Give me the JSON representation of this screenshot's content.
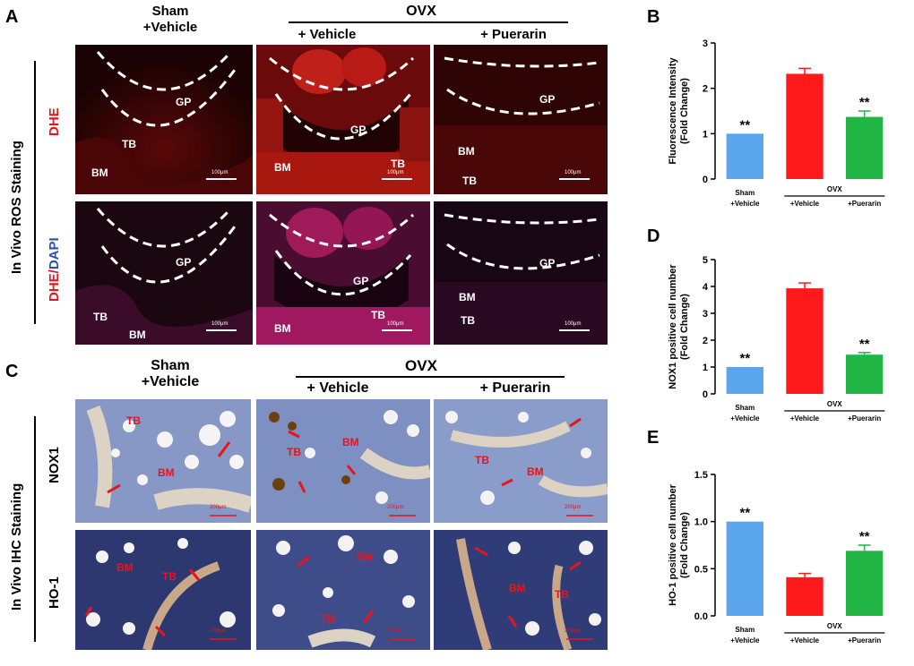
{
  "panel_letters": {
    "A": "A",
    "B": "B",
    "C": "C",
    "D": "D",
    "E": "E"
  },
  "headers_top": {
    "sham_line1": "Sham",
    "sham_line2": "+Vehicle",
    "ovx": "OVX",
    "vehicle": "+ Vehicle",
    "puerarin": "+ Puerarin"
  },
  "headers_bottom": {
    "sham_line1": "Sham",
    "sham_line2": "+Vehicle",
    "ovx": "OVX",
    "vehicle": "+ Vehicle",
    "puerarin": "+ Puerarin"
  },
  "section_labels": {
    "ros": "In Vivo ROS Staining",
    "ihc": "In Vivo IHC Staining"
  },
  "row_labels": {
    "dhe": "DHE",
    "dhe_dapi_red": "DHE/",
    "dhe_dapi_blue": "DAPI",
    "nox1": "NOX1",
    "ho1": "HO-1"
  },
  "tissue_labels": {
    "gp": "GP",
    "tb": "TB",
    "bm": "BM"
  },
  "scale_labels": {
    "ros": "100μm",
    "ihc": "200μm"
  },
  "colors": {
    "sham": "#5aa5ec",
    "vehicle": "#fe1a1a",
    "puerarin": "#20b545",
    "dhe_red": "#e8141b",
    "dapi_blue": "#2c4fa8"
  },
  "chart_data": [
    {
      "type": "bar",
      "panel": "B",
      "categories": [
        "Sham +Vehicle",
        "+Vehicle",
        "+Puerarin"
      ],
      "cat_lines": [
        [
          "Sham",
          "+Vehicle"
        ],
        [
          "+Vehicle"
        ],
        [
          "+Puerarin"
        ]
      ],
      "values": [
        1.0,
        2.32,
        1.37
      ],
      "errors": [
        0,
        0.12,
        0.13
      ],
      "significance": [
        "**",
        "",
        "**"
      ],
      "ylabel_lines": [
        "Fluorescence Intensity",
        "(Fold Change)"
      ],
      "ylim": [
        0,
        3
      ],
      "yticks": [
        0,
        1,
        2,
        3
      ],
      "ytick_labels": [
        "0",
        "1",
        "2",
        "3"
      ],
      "group_label": "OVX"
    },
    {
      "type": "bar",
      "panel": "D",
      "categories": [
        "Sham +Vehicle",
        "+Vehicle",
        "+Puerarin"
      ],
      "cat_lines": [
        [
          "Sham",
          "+Vehicle"
        ],
        [
          "+Vehicle"
        ],
        [
          "+Puerarin"
        ]
      ],
      "values": [
        1.0,
        3.93,
        1.46
      ],
      "errors": [
        0,
        0.2,
        0.08
      ],
      "significance": [
        "**",
        "",
        "**"
      ],
      "ylabel_lines": [
        "NOX1 positive cell  number",
        "(Fold Change)"
      ],
      "ylim": [
        0,
        5
      ],
      "yticks": [
        0,
        1,
        2,
        3,
        4,
        5
      ],
      "ytick_labels": [
        "0",
        "1",
        "2",
        "3",
        "4",
        "5"
      ],
      "group_label": "OVX"
    },
    {
      "type": "bar",
      "panel": "E",
      "categories": [
        "Sham +Vehicle",
        "+Vehicle",
        "+Puerarin"
      ],
      "cat_lines": [
        [
          "Sham",
          "+Vehicle"
        ],
        [
          "+Vehicle"
        ],
        [
          "+Puerarin"
        ]
      ],
      "values": [
        1.0,
        0.41,
        0.69
      ],
      "errors": [
        0,
        0.04,
        0.06
      ],
      "significance": [
        "**",
        "",
        "**"
      ],
      "ylabel_lines": [
        "HO-1 positive cell  number",
        "(Fold Change)"
      ],
      "ylim": [
        0,
        1.5
      ],
      "yticks": [
        0,
        0.5,
        1.0,
        1.5
      ],
      "ytick_labels": [
        "0.0",
        "0.5",
        "1.0",
        "1.5"
      ],
      "group_label": "OVX"
    }
  ]
}
